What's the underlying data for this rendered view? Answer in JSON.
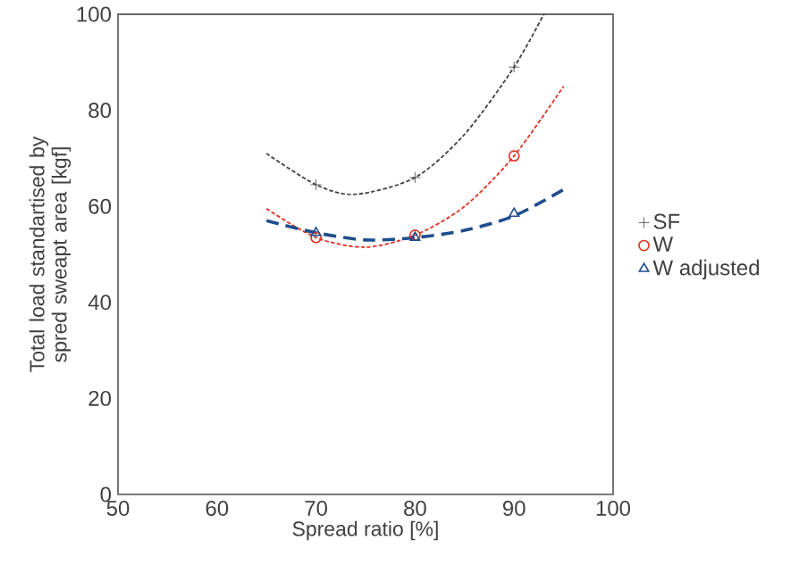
{
  "chart_data": {
    "type": "scatter",
    "xlabel": "Spread ratio [%]",
    "ylabel": "Total load standartised by spred sweapt area [kgf]",
    "xlim": [
      50,
      100
    ],
    "xticks": [
      50,
      60,
      70,
      80,
      90,
      100
    ],
    "ylim": [
      0,
      100
    ],
    "yticks": [
      0,
      20,
      40,
      60,
      80,
      100
    ],
    "grid": false,
    "legend": "right",
    "series": [
      {
        "type": "line",
        "color": "#404040",
        "line_style": "dashed",
        "marker": "none",
        "x": [
          65,
          70,
          74,
          80,
          85,
          90,
          93
        ],
        "values": [
          71,
          64.5,
          62.5,
          66,
          75,
          89,
          100
        ]
      },
      {
        "type": "line",
        "color": "#e03020",
        "line_style": "dashed",
        "marker": "none",
        "x": [
          65,
          70,
          75,
          80,
          85,
          90,
          95
        ],
        "values": [
          59.5,
          53.5,
          51.5,
          54,
          60,
          70.5,
          85
        ]
      },
      {
        "type": "line",
        "color": "#1f4e8c",
        "line_style": "dashed",
        "marker": "none",
        "x": [
          65,
          70,
          75,
          80,
          85,
          90,
          95
        ],
        "values": [
          57,
          54.5,
          53,
          53.5,
          55,
          58,
          63.5
        ]
      },
      {
        "name": "SF",
        "color": "#404040",
        "marker": "cross",
        "x": [
          70,
          80,
          90
        ],
        "values": [
          64.5,
          66,
          89
        ]
      },
      {
        "name": "W",
        "color": "#e03020",
        "marker": "circle",
        "x": [
          70,
          80,
          90
        ],
        "values": [
          53.5,
          54,
          70.5
        ]
      },
      {
        "name": "W adjusted",
        "color": "#1f4e8c",
        "marker": "triangle",
        "x": [
          70,
          80,
          90
        ],
        "values": [
          54.5,
          53.5,
          58.5
        ]
      }
    ]
  }
}
